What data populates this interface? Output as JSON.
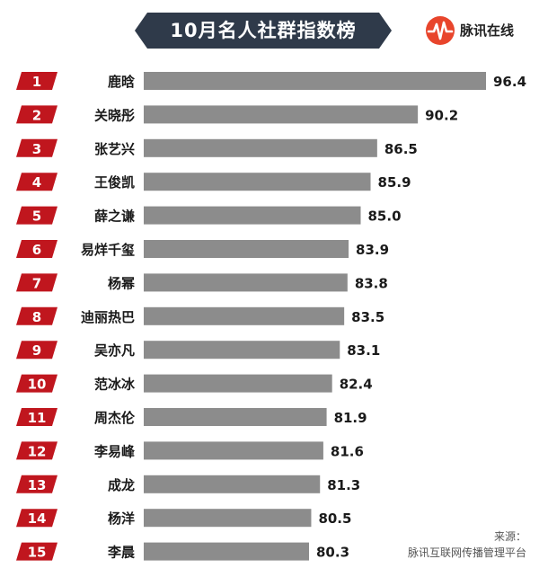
{
  "title": "10月名人社群指数榜",
  "brand": {
    "name": "脉讯在线",
    "icon": "pulse-logo-icon",
    "color": "#e8452c"
  },
  "source": {
    "label": "来源：",
    "text": "脉讯互联网传播管理平台"
  },
  "colors": {
    "rank_badge": "#c0161e",
    "bar": "#8c8c8c",
    "title_bg": "#2f3a4a"
  },
  "chart_data": {
    "type": "bar",
    "orientation": "horizontal",
    "title": "10月名人社群指数榜",
    "ranks": [
      "1",
      "2",
      "3",
      "4",
      "5",
      "6",
      "7",
      "8",
      "9",
      "10",
      "11",
      "12",
      "13",
      "14",
      "15"
    ],
    "categories": [
      "鹿晗",
      "关晓彤",
      "张艺兴",
      "王俊凯",
      "薛之谦",
      "易烊千玺",
      "杨幂",
      "迪丽热巴",
      "吴亦凡",
      "范冰冰",
      "周杰伦",
      "李易峰",
      "成龙",
      "杨洋",
      "李晨"
    ],
    "values": [
      96.4,
      90.2,
      86.5,
      85.9,
      85.0,
      83.9,
      83.8,
      83.5,
      83.1,
      82.4,
      81.9,
      81.6,
      81.3,
      80.5,
      80.3
    ],
    "value_labels": [
      "96.4",
      "90.2",
      "86.5",
      "85.9",
      "85.0",
      "83.9",
      "83.8",
      "83.5",
      "83.1",
      "82.4",
      "81.9",
      "81.6",
      "81.3",
      "80.5",
      "80.3"
    ],
    "grid": false,
    "legend": "none"
  }
}
